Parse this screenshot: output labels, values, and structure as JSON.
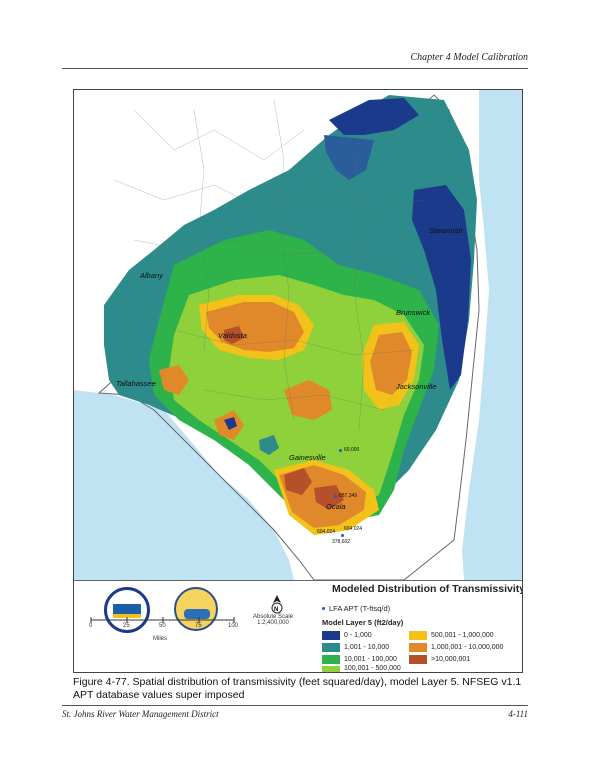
{
  "header": {
    "chapter": "Chapter 4 Model Calibration"
  },
  "map": {
    "cities": [
      {
        "name": "Savannah"
      },
      {
        "name": "Albany"
      },
      {
        "name": "Brunswick"
      },
      {
        "name": "Valdosta"
      },
      {
        "name": "Tallahassee"
      },
      {
        "name": "Jacksonville"
      },
      {
        "name": "Gainesville"
      },
      {
        "name": "Ocala"
      }
    ],
    "well_labels": [
      "60,000",
      "887,349",
      "604,024",
      "604,024",
      "378,602"
    ]
  },
  "legend": {
    "title": "Modeled Distribution of Transmissivity",
    "apt_label": "LFA APT (T-ftsq/d)",
    "layer_label": "Model Layer 5 (ft2/day)",
    "classes": [
      {
        "label": "0 - 1,000",
        "color": "#1b3a8c"
      },
      {
        "label": "1,001 - 10,000",
        "color": "#2e8b8b"
      },
      {
        "label": "10,001 - 100,000",
        "color": "#2db34a"
      },
      {
        "label": "100,001 - 500,000",
        "color": "#8fd13a"
      },
      {
        "label": "500,001 - 1,000,000",
        "color": "#f2c21b"
      },
      {
        "label": "1,000,001 - 10,000,000",
        "color": "#e0892a"
      },
      {
        "label": ">10,000,001",
        "color": "#b5502a"
      }
    ],
    "scale_ticks": [
      "0",
      "25",
      "50",
      "75",
      "100"
    ],
    "scale_unit": "Miles",
    "scale_text": "Absolute Scale",
    "scale_ratio": "1:2,400,000",
    "north_label": "N"
  },
  "caption": {
    "text": "Figure 4-77.     Spatial distribution of transmissivity (feet squared/day), model Layer 5.  NFSEG v1.1 APT database values super imposed"
  },
  "footer": {
    "left": "St. Johns River Water Management District",
    "right": "4-111"
  }
}
